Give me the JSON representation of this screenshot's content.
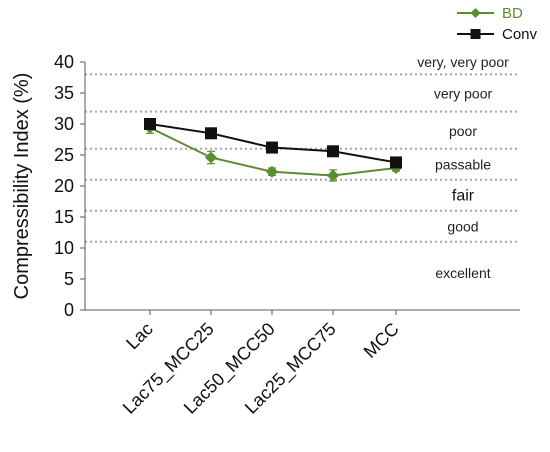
{
  "chart_data": {
    "type": "line",
    "categories": [
      "Lac",
      "Lac75_MCC25",
      "Lac50_MCC50",
      "Lac25_MCC75",
      "MCC"
    ],
    "series": [
      {
        "name": "BD",
        "color": "#5b8c32",
        "marker": "diamond",
        "values": [
          29.4,
          24.6,
          22.3,
          21.7,
          22.9
        ],
        "errors": [
          0.9,
          1.0,
          0.6,
          0.9,
          0.5
        ]
      },
      {
        "name": "Conv",
        "color": "#111111",
        "marker": "square",
        "values": [
          30.0,
          28.5,
          26.2,
          25.6,
          23.8
        ],
        "errors": [
          0.6,
          0.5,
          0.4,
          0.5,
          0.4
        ]
      }
    ],
    "ylabel": "Compressibility Index (%)",
    "xlabel": "",
    "ylim": [
      0,
      40
    ],
    "yticks": [
      0,
      5,
      10,
      15,
      20,
      25,
      30,
      35,
      40
    ],
    "threshold_lines": [
      11,
      16,
      21,
      26,
      32,
      38
    ],
    "bands": [
      {
        "label": "very, very poor",
        "y": 40
      },
      {
        "label": "very poor",
        "y": 34.9
      },
      {
        "label": "poor",
        "y": 28.9
      },
      {
        "label": "passable",
        "y": 23.5
      },
      {
        "label": "fair",
        "y": 18.5
      },
      {
        "label": "good",
        "y": 13.5
      },
      {
        "label": "excellent",
        "y": 6
      }
    ],
    "legend_position": "top-right",
    "grid": false
  }
}
